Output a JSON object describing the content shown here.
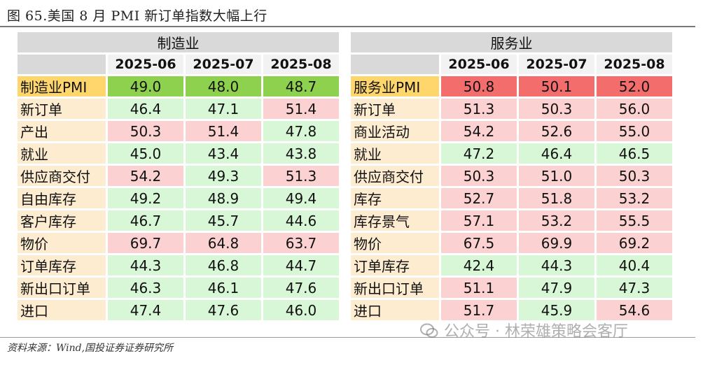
{
  "title": "图 65.美国 8 月 PMI 新订单指数大幅上行",
  "source": "资料来源：Wind,国投证券证券研究所",
  "watermark": "公众号 · 林荣雄策略会客厅",
  "colors": {
    "up_light": "#fbd1d1",
    "down_light": "#d7f7d7",
    "up_strong": "#f46d6d",
    "down_strong": "#8ed14f",
    "label_bg": "#fdecd0",
    "label_head_bg": "#ffd66b"
  },
  "chart_data": [
    {
      "type": "table",
      "section": "制造业",
      "columns": [
        "2025-06",
        "2025-07",
        "2025-08"
      ],
      "rows": [
        {
          "label": "制造业PMI",
          "values": [
            "49.0",
            "48.0",
            "48.7"
          ],
          "colors": [
            "gh",
            "gh",
            "gh"
          ]
        },
        {
          "label": "新订单",
          "values": [
            "46.4",
            "47.1",
            "51.4"
          ],
          "colors": [
            "g",
            "g",
            "r"
          ]
        },
        {
          "label": "产出",
          "values": [
            "50.3",
            "51.4",
            "47.8"
          ],
          "colors": [
            "r",
            "r",
            "g"
          ]
        },
        {
          "label": "就业",
          "values": [
            "45.0",
            "43.4",
            "43.8"
          ],
          "colors": [
            "g",
            "g",
            "g"
          ]
        },
        {
          "label": "供应商交付",
          "values": [
            "54.2",
            "49.3",
            "51.3"
          ],
          "colors": [
            "r",
            "g",
            "r"
          ]
        },
        {
          "label": "自由库存",
          "values": [
            "49.2",
            "48.9",
            "49.4"
          ],
          "colors": [
            "g",
            "g",
            "g"
          ]
        },
        {
          "label": "客户库存",
          "values": [
            "46.7",
            "45.7",
            "44.6"
          ],
          "colors": [
            "g",
            "g",
            "g"
          ]
        },
        {
          "label": "物价",
          "values": [
            "69.7",
            "64.8",
            "63.7"
          ],
          "colors": [
            "r",
            "r",
            "r"
          ]
        },
        {
          "label": "订单库存",
          "values": [
            "44.3",
            "46.8",
            "44.7"
          ],
          "colors": [
            "g",
            "g",
            "g"
          ]
        },
        {
          "label": "新出口订单",
          "values": [
            "46.3",
            "46.1",
            "47.6"
          ],
          "colors": [
            "g",
            "g",
            "g"
          ]
        },
        {
          "label": "进口",
          "values": [
            "47.4",
            "47.6",
            "46.0"
          ],
          "colors": [
            "g",
            "g",
            "g"
          ]
        }
      ]
    },
    {
      "type": "table",
      "section": "服务业",
      "columns": [
        "2025-06",
        "2025-07",
        "2025-08"
      ],
      "rows": [
        {
          "label": "服务业PMI",
          "values": [
            "50.8",
            "50.1",
            "52.0"
          ],
          "colors": [
            "rh",
            "rh",
            "rh"
          ]
        },
        {
          "label": "新订单",
          "values": [
            "51.3",
            "50.3",
            "56.0"
          ],
          "colors": [
            "r",
            "r",
            "r"
          ]
        },
        {
          "label": "商业活动",
          "values": [
            "54.2",
            "52.6",
            "55.0"
          ],
          "colors": [
            "r",
            "r",
            "r"
          ]
        },
        {
          "label": "就业",
          "values": [
            "47.2",
            "46.4",
            "46.5"
          ],
          "colors": [
            "g",
            "g",
            "g"
          ]
        },
        {
          "label": "供应商交付",
          "values": [
            "50.3",
            "51.0",
            "50.3"
          ],
          "colors": [
            "r",
            "r",
            "r"
          ]
        },
        {
          "label": "库存",
          "values": [
            "52.7",
            "51.8",
            "53.2"
          ],
          "colors": [
            "r",
            "r",
            "r"
          ]
        },
        {
          "label": "库存景气",
          "values": [
            "57.1",
            "53.2",
            "55.5"
          ],
          "colors": [
            "r",
            "r",
            "r"
          ]
        },
        {
          "label": "物价",
          "values": [
            "67.5",
            "69.9",
            "69.2"
          ],
          "colors": [
            "r",
            "r",
            "r"
          ]
        },
        {
          "label": "订单库存",
          "values": [
            "42.4",
            "44.3",
            "40.4"
          ],
          "colors": [
            "g",
            "g",
            "g"
          ]
        },
        {
          "label": "新出口订单",
          "values": [
            "51.1",
            "47.9",
            "47.3"
          ],
          "colors": [
            "r",
            "g",
            "g"
          ]
        },
        {
          "label": "进口",
          "values": [
            "51.7",
            "45.9",
            "54.6"
          ],
          "colors": [
            "r",
            "g",
            "r"
          ]
        }
      ]
    }
  ]
}
